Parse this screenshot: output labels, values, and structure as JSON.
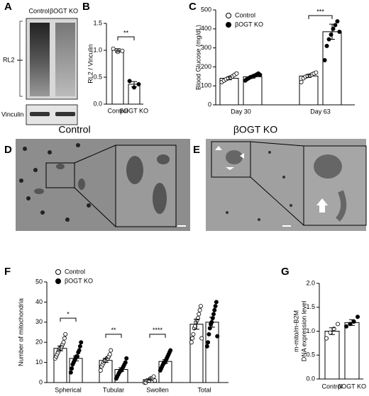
{
  "panels": [
    "A",
    "B",
    "C",
    "D",
    "E",
    "F",
    "G"
  ],
  "blot": {
    "lanes": [
      "Control",
      "βOGT KO"
    ],
    "bands": [
      "RL2",
      "Vinculin"
    ]
  },
  "em": [
    {
      "title": "Control"
    },
    {
      "title": "βOGT KO"
    }
  ],
  "chart_data": [
    {
      "type": "bar",
      "ylabel": "RL2 / Vinculin",
      "categories": [
        "Control",
        "βOGT KO"
      ],
      "values": [
        1.0,
        0.37
      ],
      "errors": [
        0.03,
        0.05
      ],
      "colors": [
        "#ffffff",
        "#000000"
      ],
      "points": [
        [
          1.03,
          0.97,
          0.99
        ],
        [
          0.43,
          0.31,
          0.37
        ]
      ],
      "ylim": [
        0,
        1.5
      ],
      "yticks": [
        {
          "value": 0,
          "label": "0.0"
        },
        0.5,
        {
          "value": 1,
          "label": "1.0"
        },
        {
          "value": 1.5,
          "label": "1.5"
        }
      ],
      "annotations": [
        "**"
      ]
    },
    {
      "type": "bar",
      "ylabel": "Blood Glucose (mg/dL)",
      "categories": [
        "Day 30",
        "Day 63"
      ],
      "series": [
        {
          "name": "Control",
          "color": "#ffffff",
          "values": [
            140,
            152
          ],
          "errors": [
            8,
            8
          ],
          "points": [
            [
              120,
              128,
              135,
              140,
              145,
              150,
              158,
              165
            ],
            [
              120,
              140,
              148,
              152,
              155,
              160,
              165,
              170
            ]
          ]
        },
        {
          "name": "βOGT KO",
          "color": "#000000",
          "values": [
            148,
            385
          ],
          "errors": [
            7,
            40
          ],
          "points": [
            [
              128,
              135,
              140,
              145,
              148,
              152,
              155,
              160,
              165,
              158
            ],
            [
              235,
              310,
              345,
              370,
              400,
              420,
              440,
              385
            ]
          ]
        }
      ],
      "ylim": [
        0,
        500
      ],
      "yticks": [
        0,
        100,
        200,
        300,
        400,
        500
      ],
      "legend": "upper left",
      "annotations": [
        "***"
      ]
    },
    {
      "type": "bar",
      "ylabel": "Number of mitochondria",
      "categories": [
        "Spherical",
        "Tubular",
        "Swollen",
        "Total"
      ],
      "series": [
        {
          "name": "Control",
          "color": "#ffffff",
          "values": [
            17,
            11,
            1.5,
            29
          ],
          "errors": [
            1.2,
            1,
            0.3,
            2.5
          ],
          "points": [
            [
              12,
              13,
              14,
              15,
              16,
              17,
              17,
              18,
              19,
              20,
              22,
              24
            ],
            [
              6,
              8,
              9,
              10,
              11,
              11,
              12,
              12,
              13,
              14,
              16
            ],
            [
              0,
              0,
              1,
              1,
              1,
              2,
              2,
              2,
              3,
              1
            ],
            [
              20,
              22,
              24,
              27,
              28,
              30,
              31,
              32,
              34,
              36,
              38,
              22
            ]
          ]
        },
        {
          "name": "βOGT KO",
          "color": "#000000",
          "values": [
            12,
            6.5,
            10.5,
            30
          ],
          "errors": [
            1.2,
            0.9,
            0.9,
            2.5
          ],
          "points": [
            [
              5,
              7,
              9,
              10,
              11,
              12,
              13,
              13,
              15,
              16,
              18,
              20
            ],
            [
              2,
              3,
              4,
              5,
              6,
              6,
              7,
              8,
              9,
              10,
              12
            ],
            [
              6,
              7,
              8,
              9,
              10,
              10,
              11,
              12,
              13,
              14,
              15,
              16
            ],
            [
              18,
              20,
              24,
              27,
              29,
              30,
              32,
              34,
              36,
              38,
              40,
              23
            ]
          ]
        }
      ],
      "ylim": [
        0,
        50
      ],
      "yticks": [
        0,
        10,
        20,
        30,
        40,
        50
      ],
      "legend": "upper left",
      "annotations": [
        "*",
        "**",
        "****"
      ]
    },
    {
      "type": "bar",
      "ylabel": [
        "m-mito/m-B2M",
        "DNA expression level"
      ],
      "categories": [
        "Control",
        "βOGT KO"
      ],
      "values": [
        1.0,
        1.18
      ],
      "errors": [
        0.07,
        0.06
      ],
      "colors": [
        "#ffffff",
        "#000000"
      ],
      "points": [
        [
          0.85,
          0.97,
          1.05,
          1.15
        ],
        [
          1.1,
          1.15,
          1.2,
          1.3
        ]
      ],
      "ylim": [
        0,
        2
      ],
      "yticks": [
        {
          "value": 0,
          "label": "0.0"
        },
        0.5,
        {
          "value": 1,
          "label": "1.0"
        },
        {
          "value": 1.5,
          "label": "1.5"
        },
        {
          "value": 2,
          "label": "2.0"
        }
      ]
    }
  ]
}
